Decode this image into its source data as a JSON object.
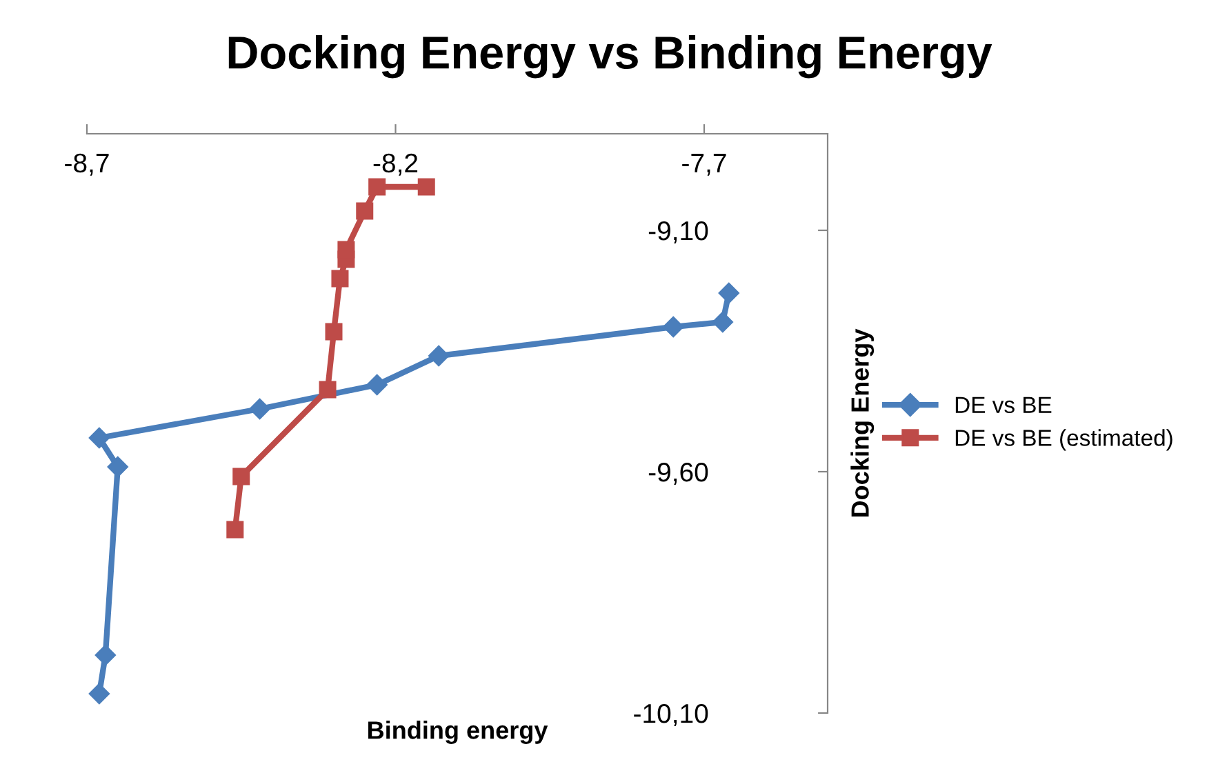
{
  "chart_data": {
    "type": "line",
    "title": "Docking Energy vs Binding Energy",
    "xlabel": "Binding energy",
    "ylabel": "Docking Energy",
    "xlim": [
      -8.7,
      -7.5
    ],
    "xticks": [
      {
        "value": -8.7,
        "label": "-8,7"
      },
      {
        "value": -8.2,
        "label": "-8,2"
      },
      {
        "value": -7.7,
        "label": "-7,7"
      }
    ],
    "ylim": [
      -10.1,
      -8.9
    ],
    "yticks": [
      {
        "value": -10.1,
        "label": "-10,10"
      },
      {
        "value": -9.6,
        "label": "-9,60"
      },
      {
        "value": -9.1,
        "label": "-9,10"
      }
    ],
    "legend": "right",
    "series": [
      {
        "name": "DE vs BE",
        "color": "#4a7ebb",
        "marker": "diamond",
        "x": [
          -8.68,
          -8.67,
          -8.65,
          -8.68,
          -8.42,
          -8.23,
          -8.13,
          -7.75,
          -7.67,
          -7.66
        ],
        "values": [
          -10.06,
          -9.98,
          -9.59,
          -9.53,
          -9.47,
          -9.42,
          -9.36,
          -9.3,
          -9.29,
          -9.23
        ]
      },
      {
        "name": "DE vs BE (estimated)",
        "color": "#be4b48",
        "marker": "square",
        "x": [
          -8.46,
          -8.45,
          -8.31,
          -8.3,
          -8.29,
          -8.28,
          -8.28,
          -8.25,
          -8.23,
          -8.15
        ],
        "values": [
          -9.72,
          -9.61,
          -9.43,
          -9.31,
          -9.2,
          -9.16,
          -9.14,
          -9.06,
          -9.01,
          -9.01
        ]
      }
    ]
  }
}
